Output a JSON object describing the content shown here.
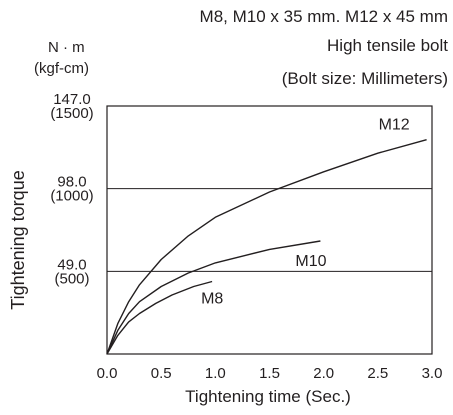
{
  "chart_data": {
    "type": "line",
    "title": "M8, M10 x 35 mm. M12 x 45 mm",
    "subtitle": "High tensile bolt",
    "note": "(Bolt size: Millimeters)",
    "ylabel": "Tightening torque",
    "yunit_primary": "N · m",
    "yunit_secondary": "(kgf-cm)",
    "xlabel": "Tightening time (Sec.)",
    "xlim": [
      0,
      3.0
    ],
    "ylim": [
      0,
      147.0
    ],
    "xticks": [
      "0.0",
      "0.5",
      "1.0",
      "1.5",
      "2.0",
      "2.5",
      "3.0"
    ],
    "xtick_values": [
      0,
      0.5,
      1.0,
      1.5,
      2.0,
      2.5,
      3.0
    ],
    "yticks": [
      {
        "value": 147.0,
        "label": "147.0",
        "sublabel": "(1500)"
      },
      {
        "value": 98.0,
        "label": "98.0",
        "sublabel": "(1000)"
      },
      {
        "value": 49.0,
        "label": "49.0",
        "sublabel": "(500)"
      }
    ],
    "reference_lines": [
      98.0,
      49.0
    ],
    "series": [
      {
        "name": "M12",
        "x": [
          0,
          0.1,
          0.2,
          0.3,
          0.5,
          0.75,
          1.0,
          1.5,
          2.0,
          2.5,
          2.95
        ],
        "y": [
          0,
          18,
          31,
          41,
          56,
          70,
          81,
          96,
          108,
          119,
          127
        ]
      },
      {
        "name": "M10",
        "x": [
          0,
          0.1,
          0.2,
          0.3,
          0.5,
          0.75,
          1.0,
          1.5,
          1.97
        ],
        "y": [
          0,
          14,
          24,
          31,
          40,
          48,
          54,
          62,
          67
        ]
      },
      {
        "name": "M8",
        "x": [
          0,
          0.1,
          0.2,
          0.3,
          0.45,
          0.6,
          0.8,
          0.97
        ],
        "y": [
          0,
          11,
          19,
          24,
          30,
          35,
          40,
          43
        ]
      }
    ]
  }
}
